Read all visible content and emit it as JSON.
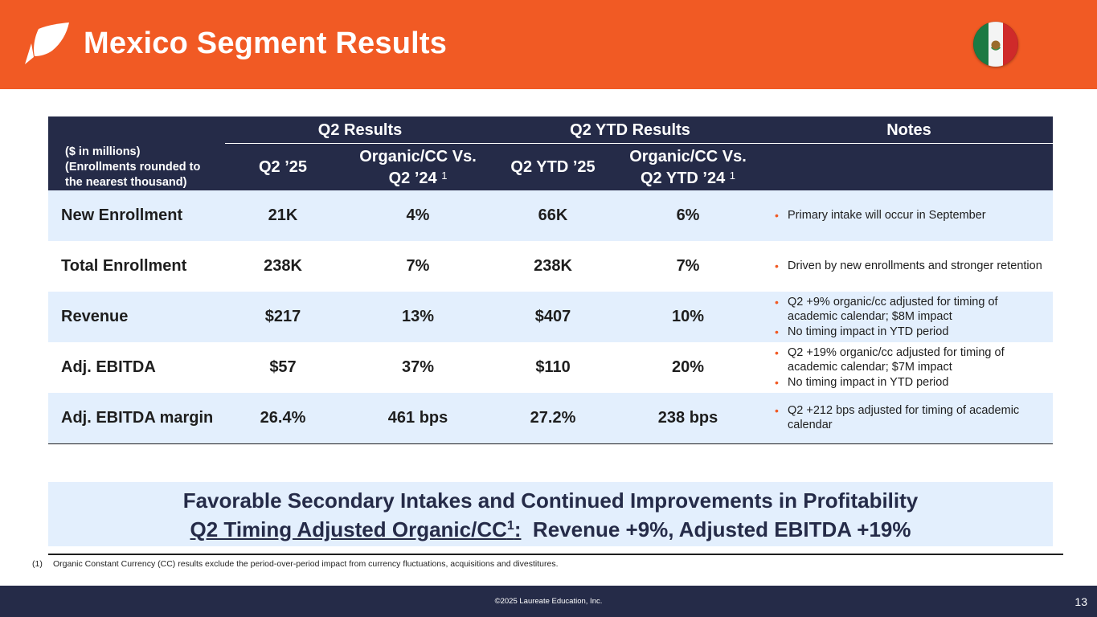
{
  "header": {
    "title": "Mexico Segment Results",
    "brand_color": "#f15a24",
    "logo_icon": "laureate-leaf-icon",
    "flag_icon": "mexico-flag-icon"
  },
  "table": {
    "group_headers": {
      "q2": "Q2 Results",
      "ytd": "Q2 YTD Results",
      "notes": "Notes"
    },
    "units_note": [
      "($ in millions)",
      "(Enrollments rounded to",
      "the nearest thousand)"
    ],
    "columns": {
      "q2": "Q2 ’25",
      "q2_organic_line1": "Organic/CC Vs.",
      "q2_organic_line2": "Q2 ’24",
      "ytd": "Q2 YTD ’25",
      "ytd_organic_line1": "Organic/CC Vs.",
      "ytd_organic_line2": "Q2 YTD ’24",
      "footnote_ref": "1"
    },
    "rows": [
      {
        "label": "New Enrollment",
        "q2": "21K",
        "q2_growth": "4%",
        "ytd": "66K",
        "ytd_growth": "6%",
        "notes": [
          "Primary intake will occur in September"
        ]
      },
      {
        "label": "Total Enrollment",
        "q2": "238K",
        "q2_growth": "7%",
        "ytd": "238K",
        "ytd_growth": "7%",
        "notes": [
          "Driven by new enrollments and stronger retention"
        ]
      },
      {
        "label": "Revenue",
        "q2": "$217",
        "q2_growth": "13%",
        "ytd": "$407",
        "ytd_growth": "10%",
        "notes": [
          "Q2 +9% organic/cc adjusted for timing of academic calendar; $8M impact",
          "No timing impact in YTD period"
        ]
      },
      {
        "label": "Adj. EBITDA",
        "q2": "$57",
        "q2_growth": "37%",
        "ytd": "$110",
        "ytd_growth": "20%",
        "notes": [
          "Q2 +19% organic/cc adjusted for timing of academic calendar; $7M impact",
          "No timing impact in YTD period"
        ]
      },
      {
        "label": "Adj. EBITDA margin",
        "q2": "26.4%",
        "q2_growth": "461 bps",
        "ytd": "27.2%",
        "ytd_growth": "238 bps",
        "notes": [
          "Q2 +212 bps adjusted for timing of academic calendar"
        ]
      }
    ]
  },
  "callout": {
    "line1": "Favorable Secondary Intakes and Continued Improvements in Profitability",
    "line2_underlined": "Q2 Timing Adjusted Organic/CC",
    "line2_sup": "1",
    "line2_colon": ":",
    "line2_rest": "  Revenue +9%, Adjusted EBITDA +19%"
  },
  "footnote": {
    "number": "(1)",
    "text": "Organic Constant Currency (CC) results exclude the period-over-period impact from currency fluctuations, acquisitions and divestitures."
  },
  "footer": {
    "copyright": "©2025 Laureate Education, Inc.",
    "page_number": "13"
  }
}
